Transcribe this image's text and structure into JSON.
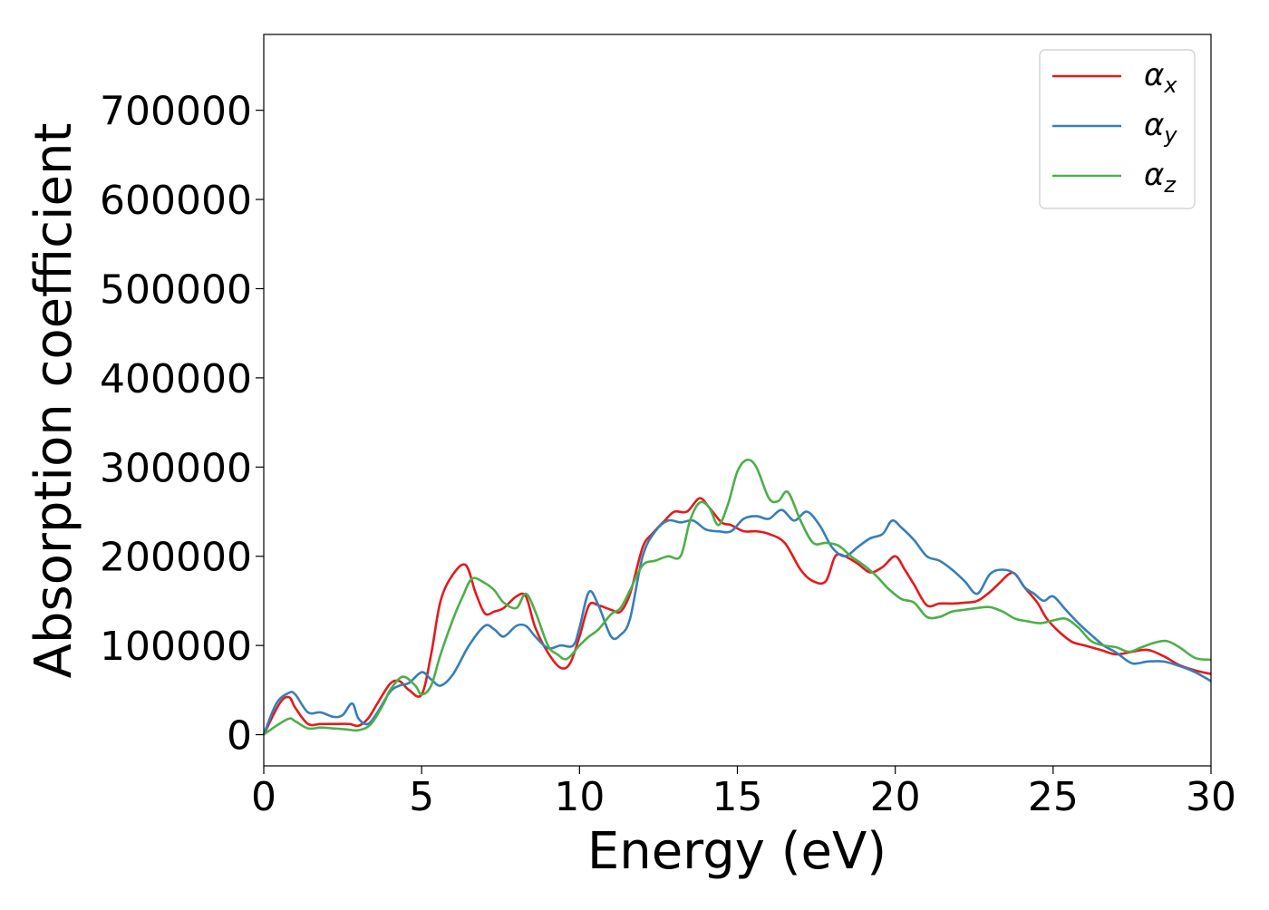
{
  "chart_data": {
    "type": "line",
    "title": "",
    "xlabel": "Energy (eV)",
    "ylabel": "Absorption coefficient",
    "xlim": [
      0,
      30
    ],
    "ylim": [
      -35000,
      785000
    ],
    "xticks": [
      0,
      5,
      10,
      15,
      20,
      25,
      30
    ],
    "yticks": [
      0,
      100000,
      200000,
      300000,
      400000,
      500000,
      600000,
      700000
    ],
    "grid": false,
    "legend_position": "top-right",
    "series": [
      {
        "name": "αx",
        "label_base": "α",
        "label_sub": "x",
        "color": "#e41a1c",
        "x": [
          0,
          0.5,
          0.8,
          1.0,
          1.4,
          1.8,
          2.2,
          2.7,
          3.0,
          3.3,
          3.6,
          4.0,
          4.3,
          4.6,
          5.0,
          5.3,
          5.6,
          6.0,
          6.4,
          6.7,
          7.0,
          7.3,
          7.6,
          8.0,
          8.3,
          8.6,
          9.0,
          9.4,
          9.7,
          10.0,
          10.3,
          10.6,
          11.0,
          11.3,
          11.6,
          12.0,
          12.3,
          12.7,
          13.0,
          13.4,
          13.8,
          14.1,
          14.5,
          14.8,
          15.2,
          15.6,
          16.0,
          16.5,
          17.0,
          17.4,
          17.8,
          18.1,
          18.4,
          18.8,
          19.2,
          19.6,
          20.0,
          20.3,
          20.6,
          21.0,
          21.4,
          21.8,
          22.2,
          22.6,
          23.0,
          23.3,
          23.6,
          23.8,
          24.1,
          24.5,
          24.8,
          25.2,
          25.6,
          26.0,
          26.5,
          27.0,
          27.5,
          28.0,
          28.5,
          29.0,
          29.5,
          30.0
        ],
        "y": [
          0,
          35000,
          42000,
          30000,
          12000,
          12000,
          12000,
          12000,
          10000,
          18000,
          35000,
          57000,
          60000,
          50000,
          45000,
          90000,
          150000,
          180000,
          190000,
          160000,
          136000,
          138000,
          142000,
          155000,
          155000,
          120000,
          92000,
          75000,
          80000,
          110000,
          145000,
          145000,
          140000,
          138000,
          158000,
          210000,
          225000,
          240000,
          250000,
          250000,
          265000,
          255000,
          238000,
          235000,
          228000,
          228000,
          225000,
          215000,
          185000,
          172000,
          172000,
          200000,
          200000,
          192000,
          182000,
          188000,
          200000,
          185000,
          168000,
          145000,
          147000,
          147000,
          148000,
          150000,
          160000,
          170000,
          180000,
          180000,
          165000,
          148000,
          130000,
          115000,
          104000,
          100000,
          95000,
          90000,
          93000,
          95000,
          88000,
          78000,
          72000,
          68000
        ]
      },
      {
        "name": "αy",
        "label_base": "α",
        "label_sub": "y",
        "color": "#377eb8",
        "x": [
          0,
          0.4,
          0.8,
          1.0,
          1.4,
          1.8,
          2.2,
          2.5,
          2.8,
          3.0,
          3.3,
          3.6,
          4.0,
          4.3,
          4.6,
          5.0,
          5.3,
          5.6,
          6.0,
          6.5,
          7.0,
          7.3,
          7.6,
          8.0,
          8.3,
          8.6,
          9.0,
          9.4,
          9.8,
          10.0,
          10.3,
          10.6,
          11.0,
          11.3,
          11.6,
          12.0,
          12.4,
          12.8,
          13.2,
          13.6,
          14.0,
          14.4,
          14.8,
          15.2,
          15.6,
          16.0,
          16.4,
          16.8,
          17.2,
          17.6,
          18.0,
          18.4,
          18.8,
          19.2,
          19.6,
          19.9,
          20.2,
          20.6,
          21.0,
          21.4,
          21.8,
          22.2,
          22.6,
          23.0,
          23.4,
          23.8,
          24.1,
          24.4,
          24.7,
          25.0,
          25.4,
          25.8,
          26.2,
          26.6,
          27.0,
          27.5,
          28.0,
          28.5,
          29.0,
          29.5,
          30.0
        ],
        "y": [
          0,
          35000,
          47000,
          45000,
          25000,
          25000,
          20000,
          22000,
          35000,
          18000,
          12000,
          25000,
          48000,
          55000,
          58000,
          70000,
          62000,
          55000,
          68000,
          100000,
          122000,
          118000,
          110000,
          122000,
          122000,
          110000,
          97000,
          100000,
          100000,
          120000,
          160000,
          145000,
          110000,
          112000,
          130000,
          200000,
          228000,
          240000,
          238000,
          240000,
          230000,
          228000,
          228000,
          242000,
          245000,
          242000,
          252000,
          240000,
          250000,
          235000,
          210000,
          200000,
          210000,
          220000,
          225000,
          240000,
          232000,
          218000,
          200000,
          195000,
          185000,
          172000,
          158000,
          180000,
          185000,
          180000,
          165000,
          158000,
          150000,
          155000,
          140000,
          125000,
          112000,
          100000,
          92000,
          80000,
          82000,
          82000,
          77000,
          70000,
          60000
        ]
      },
      {
        "name": "αz",
        "label_base": "α",
        "label_sub": "z",
        "color": "#4daf4a",
        "x": [
          0,
          0.4,
          0.8,
          1.0,
          1.4,
          1.8,
          2.2,
          2.6,
          3.0,
          3.4,
          3.8,
          4.0,
          4.4,
          4.8,
          5.0,
          5.3,
          5.6,
          6.0,
          6.3,
          6.6,
          7.0,
          7.3,
          7.6,
          8.0,
          8.3,
          8.6,
          9.0,
          9.3,
          9.6,
          10.0,
          10.3,
          10.6,
          11.0,
          11.3,
          11.6,
          12.0,
          12.4,
          12.8,
          13.2,
          13.5,
          13.8,
          14.1,
          14.4,
          14.7,
          15.0,
          15.3,
          15.6,
          16.0,
          16.3,
          16.6,
          17.0,
          17.4,
          17.8,
          18.2,
          18.6,
          19.0,
          19.4,
          19.8,
          20.2,
          20.6,
          21.0,
          21.4,
          21.8,
          22.2,
          22.6,
          23.0,
          23.4,
          23.8,
          24.2,
          24.6,
          25.0,
          25.4,
          25.8,
          26.2,
          26.6,
          27.0,
          27.4,
          27.8,
          28.2,
          28.6,
          29.0,
          29.5,
          30.0
        ],
        "y": [
          0,
          10000,
          18000,
          15000,
          7000,
          8000,
          7000,
          6000,
          5000,
          12000,
          35000,
          50000,
          65000,
          55000,
          45000,
          55000,
          90000,
          130000,
          155000,
          175000,
          170000,
          162000,
          148000,
          142000,
          158000,
          138000,
          100000,
          90000,
          85000,
          100000,
          110000,
          118000,
          135000,
          142000,
          162000,
          190000,
          195000,
          200000,
          200000,
          240000,
          260000,
          255000,
          235000,
          258000,
          295000,
          308000,
          300000,
          265000,
          262000,
          272000,
          240000,
          215000,
          215000,
          212000,
          200000,
          190000,
          178000,
          163000,
          152000,
          148000,
          132000,
          132000,
          138000,
          140000,
          142000,
          143000,
          138000,
          130000,
          127000,
          125000,
          128000,
          130000,
          120000,
          105000,
          100000,
          98000,
          93000,
          98000,
          103000,
          105000,
          98000,
          86000,
          84000
        ]
      }
    ]
  }
}
